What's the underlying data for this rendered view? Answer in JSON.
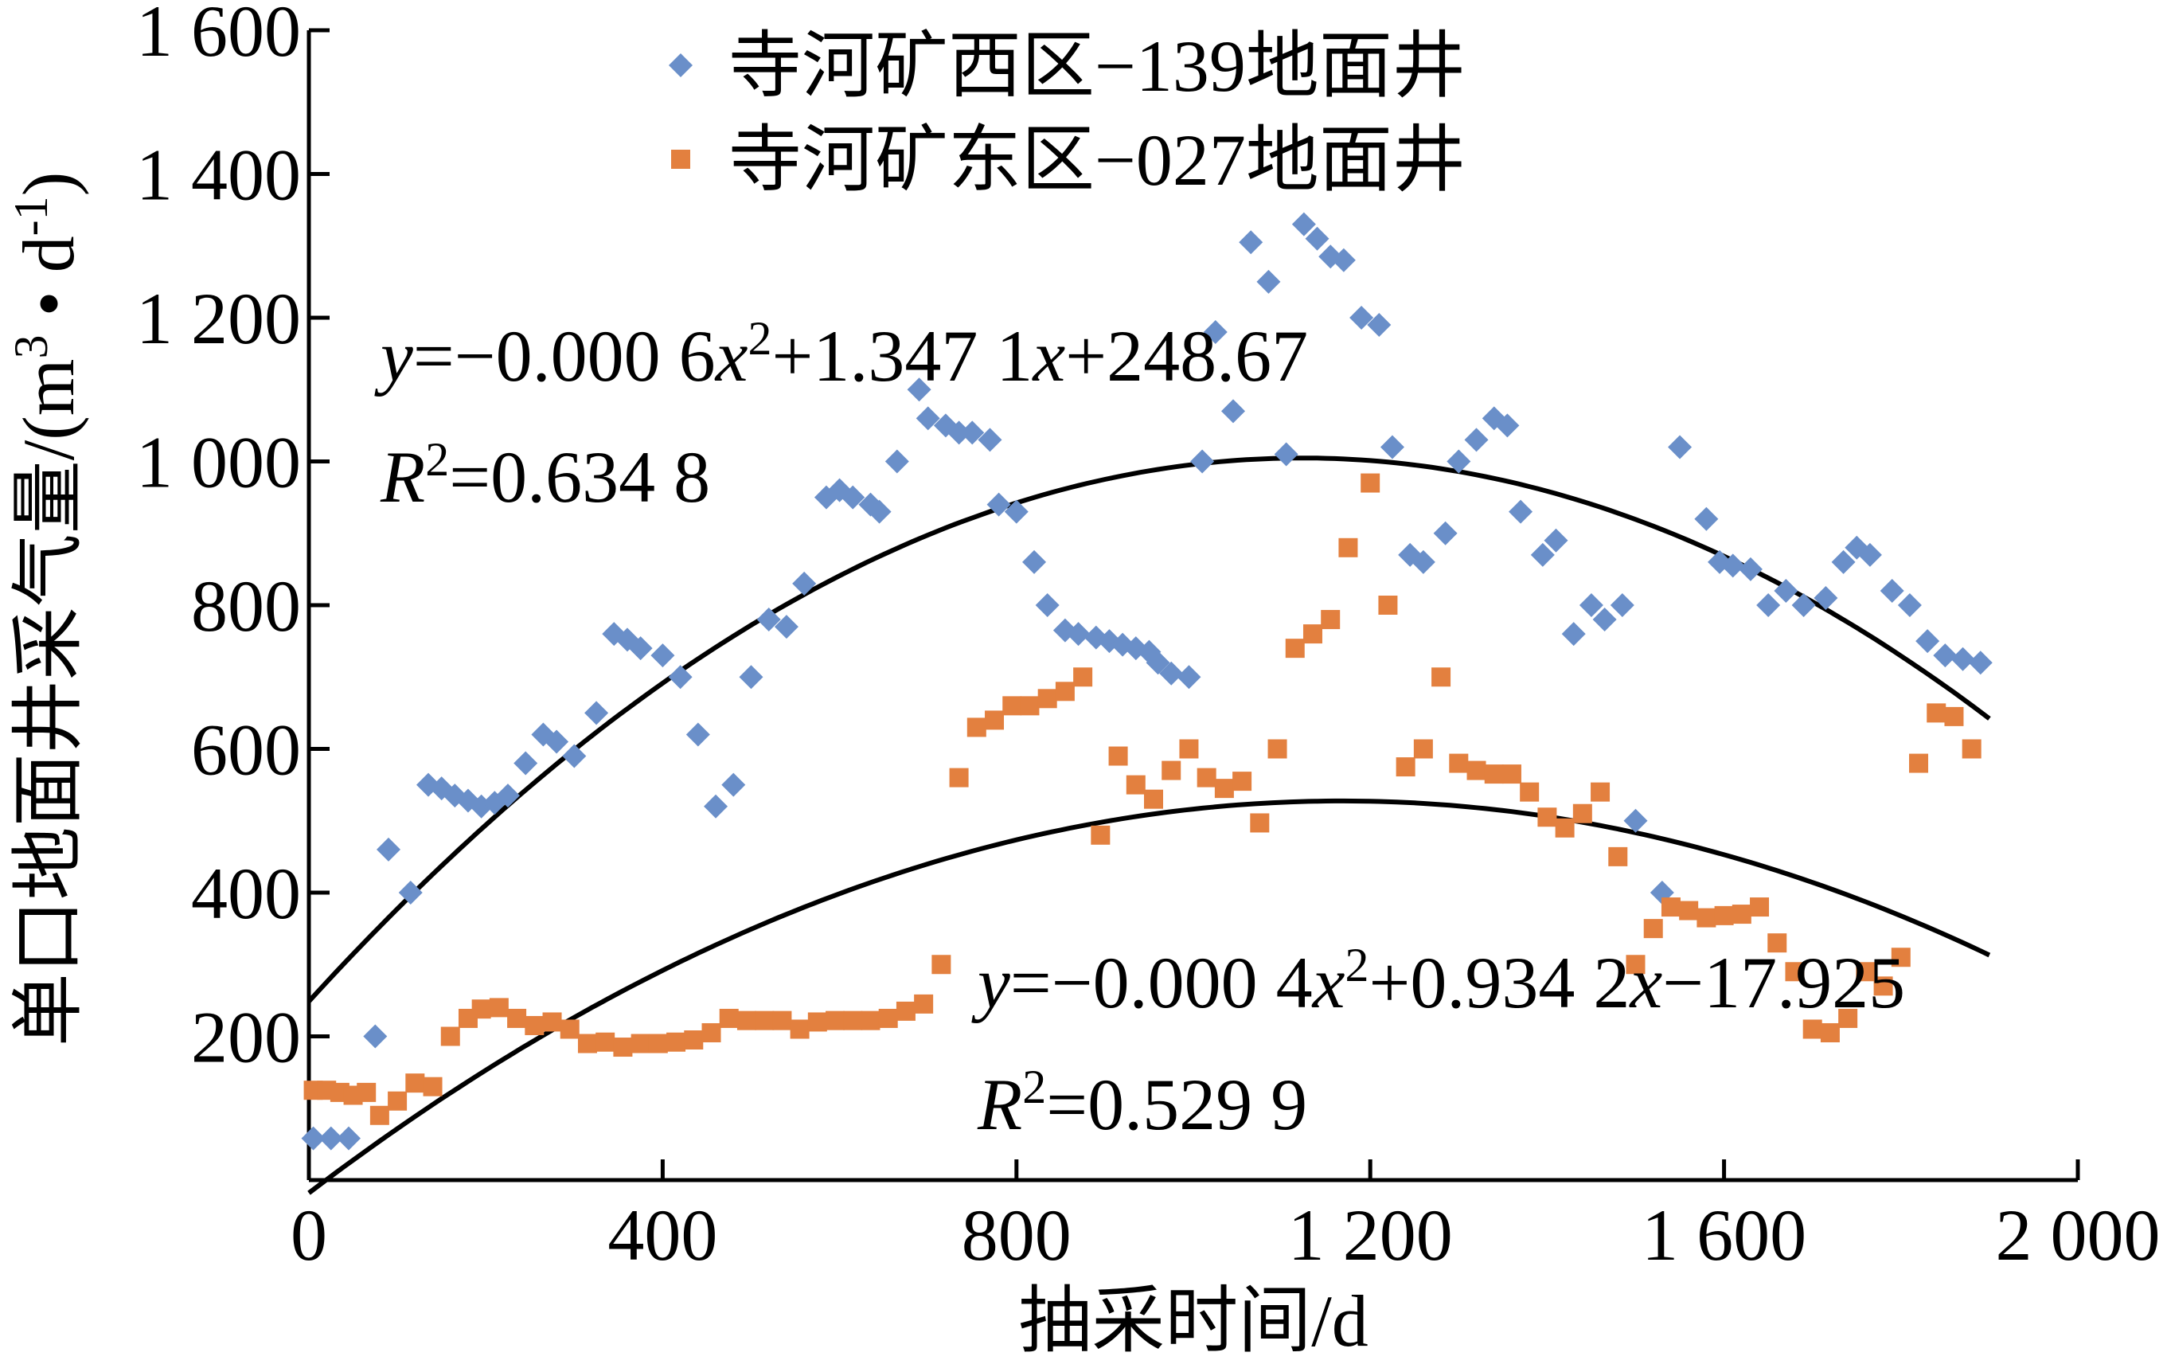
{
  "chart_data": {
    "type": "scatter",
    "xlabel": "抽采时间/d",
    "ylabel_main": "单口地面井采气量/(m",
    "ylabel_sup1": "3",
    "ylabel_mid": " • d",
    "ylabel_sup2": "-1",
    "ylabel_tail": ")",
    "xlim": [
      0,
      2000
    ],
    "ylim": [
      0,
      1600
    ],
    "x_ticks": [
      0,
      400,
      800,
      1200,
      1600,
      2000
    ],
    "x_tick_labels": [
      "0",
      "400",
      "800",
      "1 200",
      "1 600",
      "2 000"
    ],
    "y_ticks": [
      200,
      400,
      600,
      800,
      1000,
      1200,
      1400,
      1600
    ],
    "y_tick_labels": [
      "200",
      "400",
      "600",
      "800",
      "1 000",
      "1 200",
      "1 400",
      "1 600"
    ],
    "legend_position": "top-center",
    "series": [
      {
        "name": "寺河矿西区−139地面井",
        "marker": "diamond",
        "color": "#6a8fc9",
        "points": [
          [
            5,
            58
          ],
          [
            25,
            58
          ],
          [
            45,
            58
          ],
          [
            75,
            200
          ],
          [
            90,
            460
          ],
          [
            115,
            400
          ],
          [
            135,
            550
          ],
          [
            150,
            545
          ],
          [
            165,
            535
          ],
          [
            180,
            528
          ],
          [
            195,
            520
          ],
          [
            210,
            525
          ],
          [
            225,
            535
          ],
          [
            245,
            580
          ],
          [
            265,
            620
          ],
          [
            280,
            610
          ],
          [
            300,
            590
          ],
          [
            325,
            650
          ],
          [
            345,
            760
          ],
          [
            360,
            752
          ],
          [
            375,
            740
          ],
          [
            400,
            730
          ],
          [
            420,
            700
          ],
          [
            440,
            620
          ],
          [
            460,
            520
          ],
          [
            480,
            550
          ],
          [
            500,
            700
          ],
          [
            520,
            780
          ],
          [
            540,
            770
          ],
          [
            560,
            830
          ],
          [
            585,
            950
          ],
          [
            600,
            960
          ],
          [
            615,
            950
          ],
          [
            635,
            940
          ],
          [
            645,
            930
          ],
          [
            665,
            1000
          ],
          [
            690,
            1100
          ],
          [
            700,
            1060
          ],
          [
            720,
            1050
          ],
          [
            735,
            1040
          ],
          [
            750,
            1040
          ],
          [
            770,
            1030
          ],
          [
            780,
            940
          ],
          [
            800,
            930
          ],
          [
            820,
            860
          ],
          [
            835,
            800
          ],
          [
            855,
            765
          ],
          [
            870,
            760
          ],
          [
            890,
            755
          ],
          [
            905,
            750
          ],
          [
            920,
            745
          ],
          [
            935,
            740
          ],
          [
            950,
            735
          ],
          [
            960,
            720
          ],
          [
            975,
            705
          ],
          [
            995,
            700
          ],
          [
            1010,
            1000
          ],
          [
            1025,
            1180
          ],
          [
            1045,
            1070
          ],
          [
            1065,
            1305
          ],
          [
            1085,
            1250
          ],
          [
            1105,
            1010
          ],
          [
            1125,
            1330
          ],
          [
            1140,
            1310
          ],
          [
            1155,
            1285
          ],
          [
            1170,
            1280
          ],
          [
            1190,
            1200
          ],
          [
            1210,
            1190
          ],
          [
            1225,
            1020
          ],
          [
            1245,
            870
          ],
          [
            1260,
            860
          ],
          [
            1285,
            900
          ],
          [
            1300,
            1000
          ],
          [
            1320,
            1030
          ],
          [
            1340,
            1060
          ],
          [
            1355,
            1050
          ],
          [
            1370,
            930
          ],
          [
            1395,
            870
          ],
          [
            1410,
            890
          ],
          [
            1430,
            760
          ],
          [
            1450,
            800
          ],
          [
            1465,
            780
          ],
          [
            1485,
            800
          ],
          [
            1500,
            500
          ],
          [
            1530,
            400
          ],
          [
            1550,
            1020
          ],
          [
            1580,
            920
          ],
          [
            1595,
            860
          ],
          [
            1610,
            855
          ],
          [
            1630,
            850
          ],
          [
            1650,
            800
          ],
          [
            1670,
            820
          ],
          [
            1690,
            800
          ],
          [
            1715,
            810
          ],
          [
            1735,
            860
          ],
          [
            1750,
            880
          ],
          [
            1765,
            870
          ],
          [
            1790,
            820
          ],
          [
            1810,
            800
          ],
          [
            1830,
            750
          ],
          [
            1850,
            730
          ],
          [
            1870,
            725
          ],
          [
            1890,
            720
          ]
        ],
        "fit": {
          "a": -0.0006,
          "b": 1.3471,
          "c": 248.67,
          "x_range": [
            0,
            1900
          ],
          "equation_prefix": "y=−0.000 6x",
          "equation_sup": "2",
          "equation_suffix": "+1.347 1x+248.67",
          "r2_prefix": "R",
          "r2_sup": "2",
          "r2_suffix": "=0.634 8"
        }
      },
      {
        "name": "寺河矿东区−027地面井",
        "marker": "square",
        "color": "#e3803f",
        "points": [
          [
            5,
            125
          ],
          [
            20,
            125
          ],
          [
            35,
            122
          ],
          [
            50,
            118
          ],
          [
            65,
            122
          ],
          [
            80,
            90
          ],
          [
            100,
            110
          ],
          [
            120,
            135
          ],
          [
            140,
            130
          ],
          [
            160,
            200
          ],
          [
            180,
            225
          ],
          [
            195,
            238
          ],
          [
            215,
            240
          ],
          [
            235,
            225
          ],
          [
            255,
            215
          ],
          [
            275,
            220
          ],
          [
            295,
            210
          ],
          [
            315,
            190
          ],
          [
            335,
            192
          ],
          [
            355,
            185
          ],
          [
            375,
            190
          ],
          [
            395,
            190
          ],
          [
            415,
            192
          ],
          [
            435,
            195
          ],
          [
            455,
            205
          ],
          [
            475,
            225
          ],
          [
            495,
            222
          ],
          [
            515,
            222
          ],
          [
            535,
            222
          ],
          [
            555,
            210
          ],
          [
            575,
            220
          ],
          [
            595,
            222
          ],
          [
            615,
            222
          ],
          [
            635,
            222
          ],
          [
            655,
            225
          ],
          [
            675,
            235
          ],
          [
            695,
            245
          ],
          [
            715,
            300
          ],
          [
            735,
            560
          ],
          [
            755,
            630
          ],
          [
            775,
            640
          ],
          [
            795,
            660
          ],
          [
            815,
            660
          ],
          [
            835,
            670
          ],
          [
            855,
            680
          ],
          [
            875,
            700
          ],
          [
            895,
            480
          ],
          [
            915,
            590
          ],
          [
            935,
            550
          ],
          [
            955,
            530
          ],
          [
            975,
            570
          ],
          [
            995,
            600
          ],
          [
            1015,
            560
          ],
          [
            1035,
            545
          ],
          [
            1055,
            555
          ],
          [
            1075,
            497
          ],
          [
            1095,
            600
          ],
          [
            1115,
            740
          ],
          [
            1135,
            760
          ],
          [
            1155,
            780
          ],
          [
            1175,
            880
          ],
          [
            1200,
            970
          ],
          [
            1220,
            800
          ],
          [
            1240,
            575
          ],
          [
            1260,
            600
          ],
          [
            1280,
            700
          ],
          [
            1300,
            580
          ],
          [
            1320,
            570
          ],
          [
            1340,
            565
          ],
          [
            1360,
            565
          ],
          [
            1380,
            540
          ],
          [
            1400,
            505
          ],
          [
            1420,
            490
          ],
          [
            1440,
            510
          ],
          [
            1460,
            540
          ],
          [
            1480,
            450
          ],
          [
            1500,
            300
          ],
          [
            1520,
            350
          ],
          [
            1540,
            380
          ],
          [
            1560,
            375
          ],
          [
            1580,
            365
          ],
          [
            1600,
            368
          ],
          [
            1620,
            370
          ],
          [
            1640,
            380
          ],
          [
            1660,
            330
          ],
          [
            1680,
            290
          ],
          [
            1700,
            210
          ],
          [
            1720,
            205
          ],
          [
            1740,
            225
          ],
          [
            1760,
            290
          ],
          [
            1780,
            270
          ],
          [
            1800,
            310
          ],
          [
            1820,
            580
          ],
          [
            1840,
            650
          ],
          [
            1860,
            645
          ],
          [
            1880,
            600
          ]
        ],
        "fit": {
          "a": -0.0004,
          "b": 0.9342,
          "c": -17.925,
          "x_range": [
            0,
            1900
          ],
          "equation_prefix": "y=−0.000 4x",
          "equation_sup": "2",
          "equation_suffix": "+0.934 2x−17.925",
          "r2_prefix": "R",
          "r2_sup": "2",
          "r2_suffix": "=0.529 9"
        }
      }
    ]
  }
}
